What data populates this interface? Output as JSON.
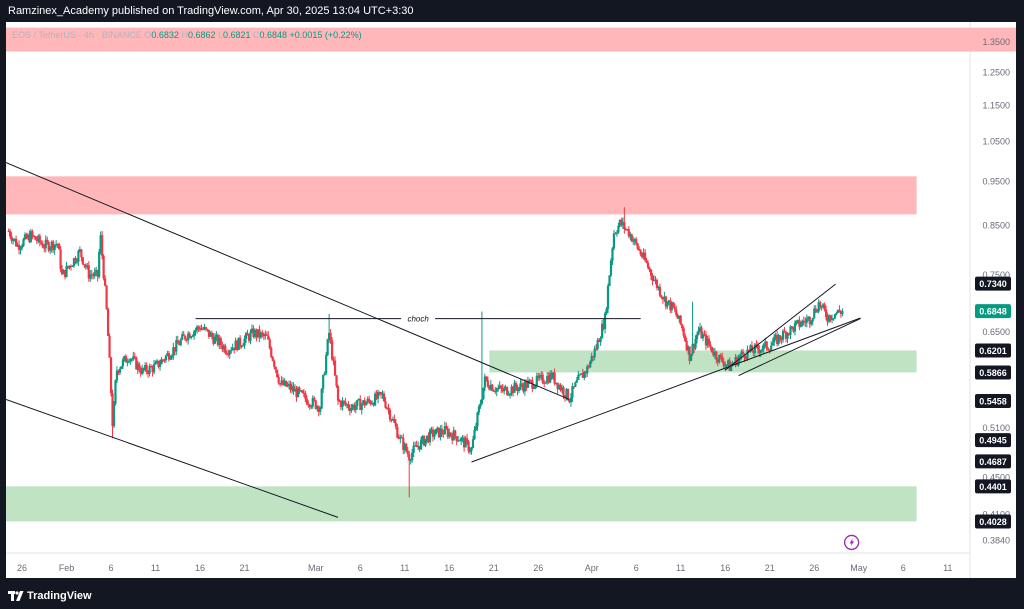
{
  "header": {
    "publisher": "Ramzinex_Academy published on TradingView.com, Apr 30, 2025 13:04 UTC+3:30"
  },
  "footer": {
    "brand": "TradingView"
  },
  "colors": {
    "bull": "#089981",
    "bear": "#f23645",
    "supply": "#ffb3b6",
    "demand": "#bde3c0",
    "axis_text": "#6a6d78",
    "dark_box": "#131722"
  },
  "chart_data": {
    "type": "candlestick",
    "symbol_line": "EOS / TetherUS · 4h · BINANCE",
    "ohlc": {
      "o_label": "O",
      "o": "0.6832",
      "h_label": "H",
      "h": "0.6862",
      "l_label": "L",
      "l": "0.6821",
      "c_label": "C",
      "c": "0.6848",
      "change": "+0.0015 (+0.22%)"
    },
    "y_axis": {
      "scale": "log",
      "range": [
        0.372,
        1.42
      ],
      "ticks": [
        "1.3500",
        "1.2500",
        "1.1500",
        "1.0500",
        "0.9500",
        "0.8500",
        "0.7500",
        "0.6500",
        "0.5100",
        "0.4500",
        "0.4100",
        "0.3840"
      ],
      "tick_values": [
        1.35,
        1.25,
        1.15,
        1.05,
        0.95,
        0.85,
        0.75,
        0.65,
        0.51,
        0.45,
        0.41,
        0.384
      ],
      "labels": [
        {
          "value": 0.734,
          "text": "0.7340",
          "style": "dark"
        },
        {
          "value": 0.6848,
          "text": "0.6848",
          "style": "green"
        },
        {
          "value": 0.6201,
          "text": "0.6201",
          "style": "dark"
        },
        {
          "value": 0.5866,
          "text": "0.5866",
          "style": "dark"
        },
        {
          "value": 0.5458,
          "text": "0.5458",
          "style": "dark"
        },
        {
          "value": 0.4945,
          "text": "0.4945",
          "style": "dark"
        },
        {
          "value": 0.4687,
          "text": "0.4687",
          "style": "dark"
        },
        {
          "value": 0.4401,
          "text": "0.4401",
          "style": "dark"
        },
        {
          "value": 0.4028,
          "text": "0.4028",
          "style": "dark"
        }
      ]
    },
    "x_axis": {
      "day_range": [
        -6.8,
        101.5
      ],
      "ticks": [
        {
          "label": "26",
          "day": -5
        },
        {
          "label": "Feb",
          "day": 0
        },
        {
          "label": "6",
          "day": 5
        },
        {
          "label": "11",
          "day": 10
        },
        {
          "label": "16",
          "day": 15
        },
        {
          "label": "21",
          "day": 20
        },
        {
          "label": "Mar",
          "day": 28
        },
        {
          "label": "6",
          "day": 33
        },
        {
          "label": "11",
          "day": 38
        },
        {
          "label": "16",
          "day": 43
        },
        {
          "label": "21",
          "day": 48
        },
        {
          "label": "26",
          "day": 53
        },
        {
          "label": "Apr",
          "day": 59
        },
        {
          "label": "6",
          "day": 64
        },
        {
          "label": "11",
          "day": 69
        },
        {
          "label": "16",
          "day": 74
        },
        {
          "label": "21",
          "day": 79
        },
        {
          "label": "26",
          "day": 84
        },
        {
          "label": "May",
          "day": 89
        },
        {
          "label": "6",
          "day": 94
        },
        {
          "label": "11",
          "day": 99
        }
      ]
    },
    "zones": [
      {
        "kind": "supply",
        "top": 1.4,
        "bottom": 1.318,
        "day_from": -6.8,
        "day_to": 101.5
      },
      {
        "kind": "supply",
        "top": 0.962,
        "bottom": 0.874,
        "day_from": -6.8,
        "day_to": 95.5
      },
      {
        "kind": "demand",
        "top": 0.6201,
        "bottom": 0.5866,
        "day_from": 47.5,
        "day_to": 95.5
      },
      {
        "kind": "demand",
        "top": 0.4401,
        "bottom": 0.4028,
        "day_from": -6.8,
        "day_to": 95.5
      }
    ],
    "annotations": [
      {
        "name": "choch",
        "text": "choch",
        "from": [
          14.5,
          0.672
        ],
        "to": [
          64.5,
          0.672
        ]
      }
    ],
    "trendlines": [
      {
        "from": [
          -6.8,
          0.996
        ],
        "to": [
          56.5,
          0.548
        ]
      },
      {
        "from": [
          -6.8,
          0.548
        ],
        "to": [
          30.5,
          0.407
        ]
      },
      {
        "from": [
          45.5,
          0.468
        ],
        "to": [
          89.2,
          0.673
        ]
      },
      {
        "from": [
          75.5,
          0.582
        ],
        "to": [
          89.2,
          0.672
        ]
      },
      {
        "from": [
          74.0,
          0.59
        ],
        "to": [
          86.4,
          0.733
        ]
      }
    ],
    "close_path": [
      [
        -6.5,
        0.838
      ],
      [
        -5.5,
        0.808
      ],
      [
        -4,
        0.828
      ],
      [
        -2.5,
        0.808
      ],
      [
        -1,
        0.812
      ],
      [
        -0.5,
        0.748
      ],
      [
        0.5,
        0.772
      ],
      [
        1.5,
        0.795
      ],
      [
        2.5,
        0.752
      ],
      [
        3.5,
        0.748
      ],
      [
        3.8,
        0.83
      ],
      [
        4.5,
        0.685
      ],
      [
        5.2,
        0.508
      ],
      [
        5.6,
        0.59
      ],
      [
        7,
        0.612
      ],
      [
        8.5,
        0.588
      ],
      [
        10,
        0.595
      ],
      [
        12,
        0.622
      ],
      [
        13.5,
        0.645
      ],
      [
        15,
        0.658
      ],
      [
        16.5,
        0.64
      ],
      [
        18,
        0.622
      ],
      [
        19.5,
        0.632
      ],
      [
        21,
        0.648
      ],
      [
        22.5,
        0.64
      ],
      [
        24,
        0.57
      ],
      [
        25,
        0.565
      ],
      [
        27,
        0.548
      ],
      [
        28.5,
        0.538
      ],
      [
        29.5,
        0.648
      ],
      [
        30.5,
        0.545
      ],
      [
        32,
        0.538
      ],
      [
        34,
        0.545
      ],
      [
        35.5,
        0.553
      ],
      [
        37.5,
        0.495
      ],
      [
        38.5,
        0.475
      ],
      [
        39.5,
        0.488
      ],
      [
        41,
        0.502
      ],
      [
        42.5,
        0.506
      ],
      [
        44,
        0.498
      ],
      [
        45.5,
        0.483
      ],
      [
        47,
        0.575
      ],
      [
        48,
        0.565
      ],
      [
        49,
        0.56
      ],
      [
        51,
        0.566
      ],
      [
        53,
        0.574
      ],
      [
        54.5,
        0.582
      ],
      [
        55.5,
        0.565
      ],
      [
        56.5,
        0.55
      ],
      [
        57.5,
        0.575
      ],
      [
        58.5,
        0.592
      ],
      [
        59.5,
        0.625
      ],
      [
        60.5,
        0.672
      ],
      [
        61.5,
        0.835
      ],
      [
        62.2,
        0.855
      ],
      [
        63.2,
        0.835
      ],
      [
        64.2,
        0.802
      ],
      [
        65.2,
        0.77
      ],
      [
        66.2,
        0.735
      ],
      [
        67.2,
        0.705
      ],
      [
        68.2,
        0.688
      ],
      [
        69.2,
        0.655
      ],
      [
        70,
        0.612
      ],
      [
        71,
        0.652
      ],
      [
        72,
        0.632
      ],
      [
        73,
        0.612
      ],
      [
        74.5,
        0.595
      ],
      [
        76,
        0.615
      ],
      [
        77.5,
        0.622
      ],
      [
        79,
        0.628
      ],
      [
        80.5,
        0.645
      ],
      [
        82,
        0.66
      ],
      [
        83.5,
        0.672
      ],
      [
        84.5,
        0.698
      ],
      [
        85.5,
        0.675
      ],
      [
        86.5,
        0.682
      ],
      [
        87.2,
        0.6848
      ]
    ],
    "spikes": [
      [
        5.2,
        0.497
      ],
      [
        29.5,
        0.68
      ],
      [
        38.5,
        0.428
      ],
      [
        46.6,
        0.684
      ],
      [
        62.6,
        0.89
      ],
      [
        70.3,
        0.701
      ]
    ],
    "last_price": 0.6848
  }
}
